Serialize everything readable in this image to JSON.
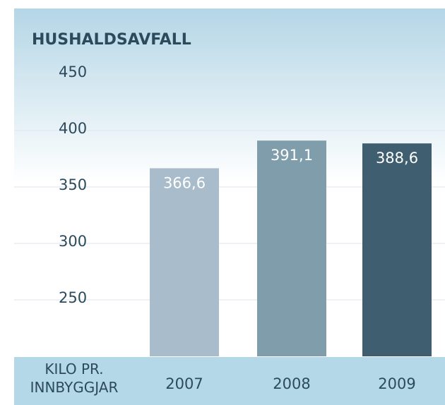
{
  "chart_data": {
    "type": "bar",
    "title": "HUSHALDSAVFALL",
    "x_label": "KILO PR. INNBYGGJAR",
    "categories": [
      "2007",
      "2008",
      "2009"
    ],
    "values": [
      366.6,
      391.1,
      388.6
    ],
    "value_labels": [
      "366,6",
      "391,1",
      "388,6"
    ],
    "colors": [
      "#a8bccb",
      "#809dac",
      "#3f5e6f"
    ],
    "ylim": [
      200,
      450
    ],
    "yticks": [
      250,
      300,
      350,
      400,
      450
    ],
    "grid": true
  }
}
